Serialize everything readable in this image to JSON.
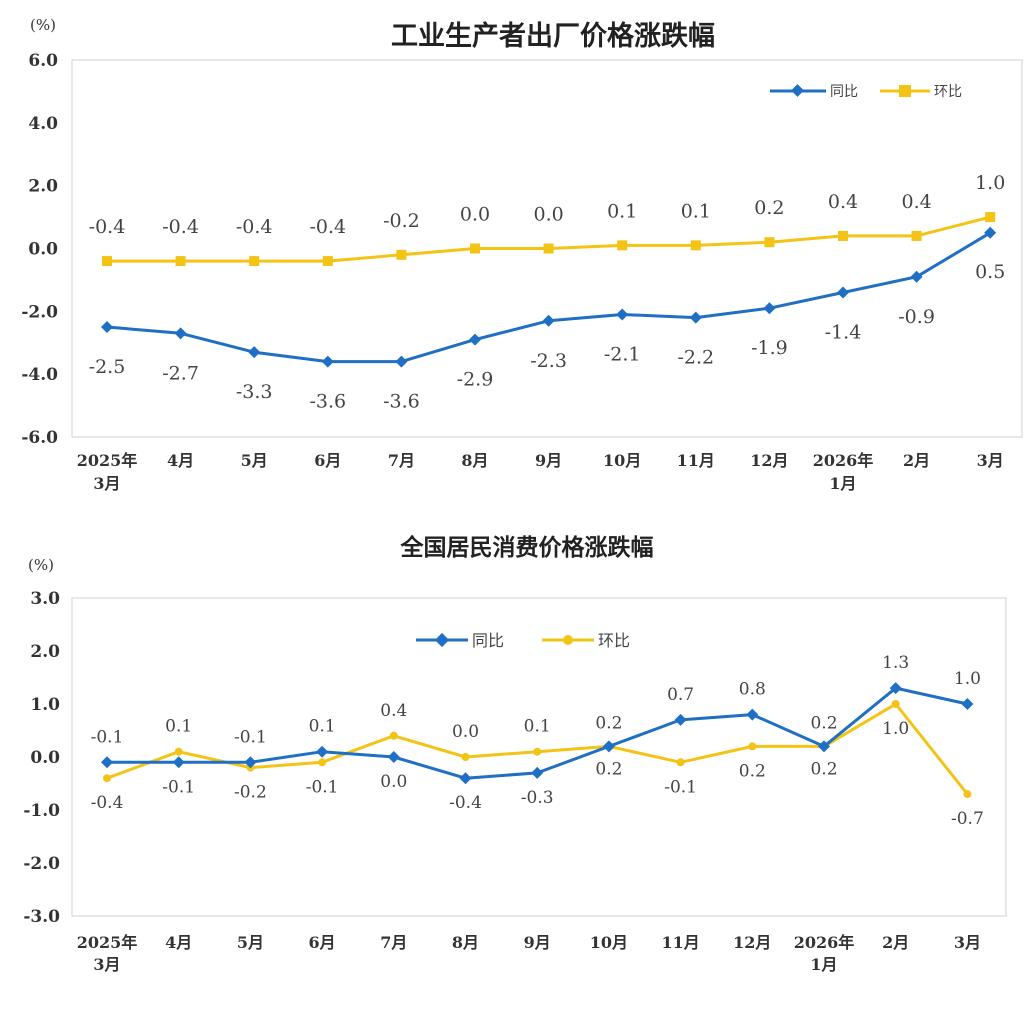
{
  "chart_data": [
    {
      "type": "line",
      "title": "工业生产者出厂价格涨跌幅",
      "unit": "(%)",
      "ylim": [
        -6.0,
        6.0
      ],
      "yticks": [
        "6.0",
        "4.0",
        "2.0",
        "0.0",
        "-2.0",
        "-4.0",
        "-6.0"
      ],
      "categories": [
        [
          "2025年",
          "3月"
        ],
        [
          "4月"
        ],
        [
          "5月"
        ],
        [
          "6月"
        ],
        [
          "7月"
        ],
        [
          "8月"
        ],
        [
          "9月"
        ],
        [
          "10月"
        ],
        [
          "11月"
        ],
        [
          "12月"
        ],
        [
          "2026年",
          "1月"
        ],
        [
          "2月"
        ],
        [
          "3月"
        ]
      ],
      "legend": "top-right",
      "series": [
        {
          "name": "同比",
          "color": "#1f6fc4",
          "marker": "diamond",
          "values": [
            -2.5,
            -2.7,
            -3.3,
            -3.6,
            -3.6,
            -2.9,
            -2.3,
            -2.1,
            -2.2,
            -1.9,
            -1.4,
            -0.9,
            0.5
          ],
          "labels": [
            "-2.5",
            "-2.7",
            "-3.3",
            "-3.6",
            "-3.6",
            "-2.9",
            "-2.3",
            "-2.1",
            "-2.2",
            "-1.9",
            "-1.4",
            "-0.9",
            "0.5"
          ]
        },
        {
          "name": "环比",
          "color": "#f3c316",
          "marker": "square",
          "values": [
            -0.4,
            -0.4,
            -0.4,
            -0.4,
            -0.2,
            0.0,
            0.0,
            0.1,
            0.1,
            0.2,
            0.4,
            0.4,
            1.0
          ],
          "labels": [
            "-0.4",
            "-0.4",
            "-0.4",
            "-0.4",
            "-0.2",
            "0.0",
            "0.0",
            "0.1",
            "0.1",
            "0.2",
            "0.4",
            "0.4",
            "1.0"
          ]
        }
      ]
    },
    {
      "type": "line",
      "title": "全国居民消费价格涨跌幅",
      "unit": "(%)",
      "ylim": [
        -3.0,
        3.0
      ],
      "yticks": [
        "3.0",
        "2.0",
        "1.0",
        "0.0",
        "-1.0",
        "-2.0",
        "-3.0"
      ],
      "categories": [
        [
          "2025年",
          "3月"
        ],
        [
          "4月"
        ],
        [
          "5月"
        ],
        [
          "6月"
        ],
        [
          "7月"
        ],
        [
          "8月"
        ],
        [
          "9月"
        ],
        [
          "10月"
        ],
        [
          "11月"
        ],
        [
          "12月"
        ],
        [
          "2026年",
          "1月"
        ],
        [
          "2月"
        ],
        [
          "3月"
        ]
      ],
      "legend": "top-center",
      "series": [
        {
          "name": "同比",
          "color": "#1f6fc4",
          "marker": "diamond",
          "values": [
            -0.1,
            -0.1,
            -0.1,
            0.1,
            0.0,
            -0.4,
            -0.3,
            0.2,
            0.7,
            0.8,
            0.2,
            1.3,
            1.0
          ],
          "labels": [
            "-0.1",
            "-0.1",
            "-0.1",
            "0.1",
            "0.0",
            "-0.4",
            "-0.3",
            "0.2",
            "0.7",
            "0.8",
            "0.2",
            "1.3",
            "1.0"
          ]
        },
        {
          "name": "环比",
          "color": "#f3c316",
          "marker": "dot",
          "values": [
            -0.4,
            0.1,
            -0.2,
            -0.1,
            0.4,
            0.0,
            0.1,
            0.2,
            -0.1,
            0.2,
            0.2,
            1.0,
            -0.7
          ],
          "labels": [
            "-0.4",
            "0.1",
            "-0.2",
            "-0.1",
            "0.4",
            "0.0",
            "0.1",
            "0.2",
            "-0.1",
            "0.2",
            "0.2",
            "1.0",
            "-0.7"
          ]
        }
      ]
    }
  ]
}
